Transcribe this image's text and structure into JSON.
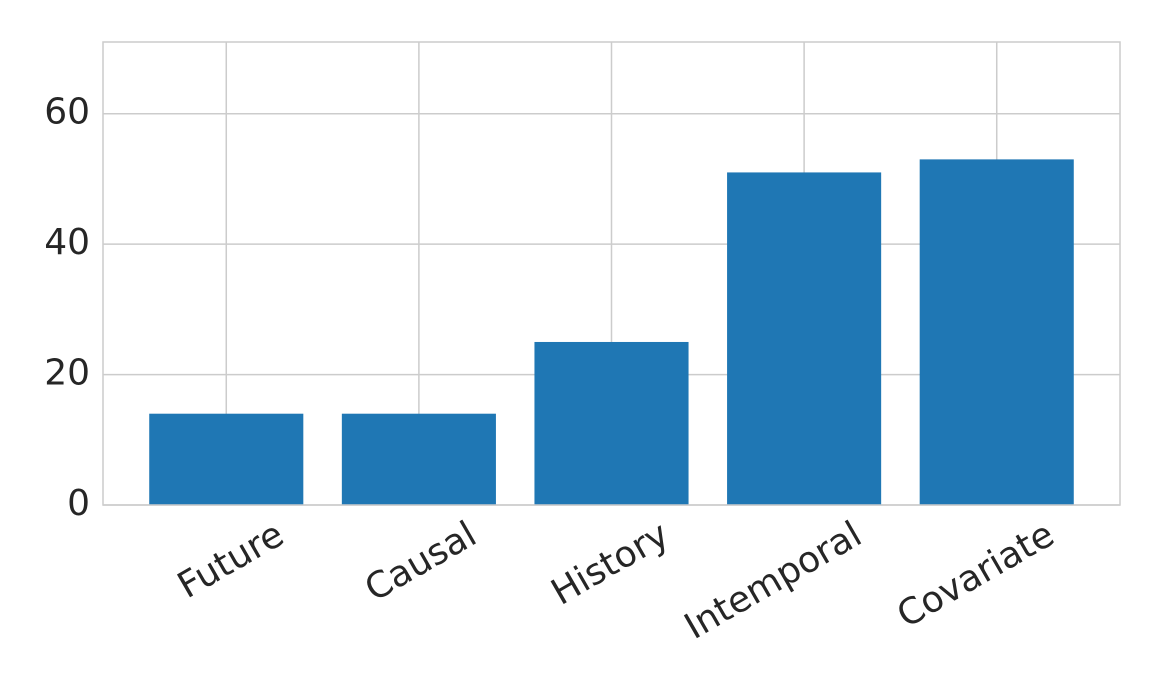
{
  "chart_data": {
    "type": "bar",
    "categories": [
      "Future",
      "Causal",
      "History",
      "Intemporal",
      "Covariate"
    ],
    "values": [
      14,
      14,
      25,
      51,
      53
    ],
    "color": "#1f77b4",
    "ylim": [
      0,
      71
    ],
    "yticks": [
      0,
      20,
      40,
      60
    ],
    "grid": true
  }
}
